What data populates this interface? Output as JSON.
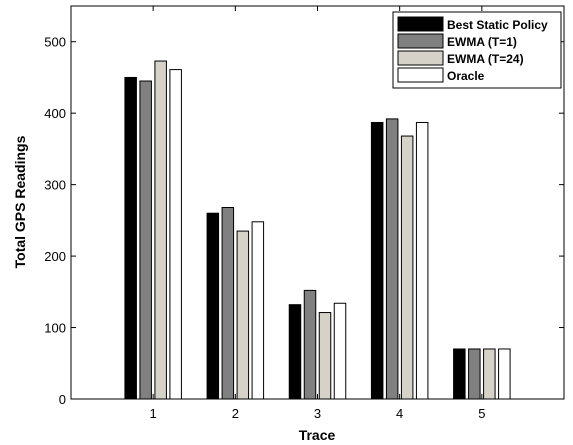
{
  "chart_data": {
    "type": "bar",
    "xlabel": "Trace",
    "ylabel": "Total GPS Readings",
    "categories": [
      "1",
      "2",
      "3",
      "4",
      "5"
    ],
    "ylim": [
      0,
      550
    ],
    "yticks": [
      0,
      100,
      200,
      300,
      400,
      500
    ],
    "grid": false,
    "legend_position": "top-right",
    "series": [
      {
        "name": "Best Static Policy",
        "color": "#000000",
        "values": [
          450,
          260,
          132,
          387,
          70
        ]
      },
      {
        "name": "EWMA (T=1)",
        "color": "#808080",
        "values": [
          445,
          268,
          152,
          392,
          70
        ]
      },
      {
        "name": "EWMA (T=24)",
        "color": "#d6d2c8",
        "values": [
          473,
          235,
          121,
          368,
          70
        ]
      },
      {
        "name": "Oracle",
        "color": "#ffffff",
        "values": [
          461,
          248,
          134,
          387,
          70
        ]
      }
    ]
  }
}
